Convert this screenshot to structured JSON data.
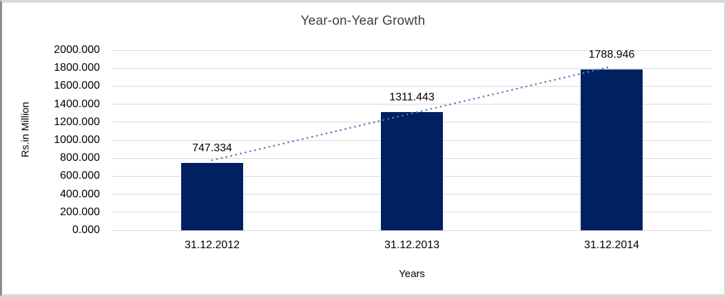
{
  "chart_data": {
    "type": "bar",
    "title": "Year-on-Year Growth",
    "categories": [
      "31.12.2012",
      "31.12.2013",
      "31.12.2014"
    ],
    "values": [
      747.334,
      1311.443,
      1788.946
    ],
    "data_labels": [
      "747.334",
      "1311.443",
      "1788.946"
    ],
    "xlabel": "Years",
    "ylabel": "Rs.in Million",
    "ylim": [
      0,
      2000
    ],
    "ytick_step": 200,
    "ytick_labels": [
      "0.000",
      "200.000",
      "400.000",
      "600.000",
      "800.000",
      "1000.000",
      "1200.000",
      "1400.000",
      "1600.000",
      "1800.000",
      "2000.000"
    ],
    "grid": true,
    "legend": "none",
    "bar_color": "#002060",
    "gridline_color": "#d9d9d9",
    "title_color": "#404040",
    "trendline": {
      "style": "dotted",
      "color": "#4f81bd"
    }
  }
}
